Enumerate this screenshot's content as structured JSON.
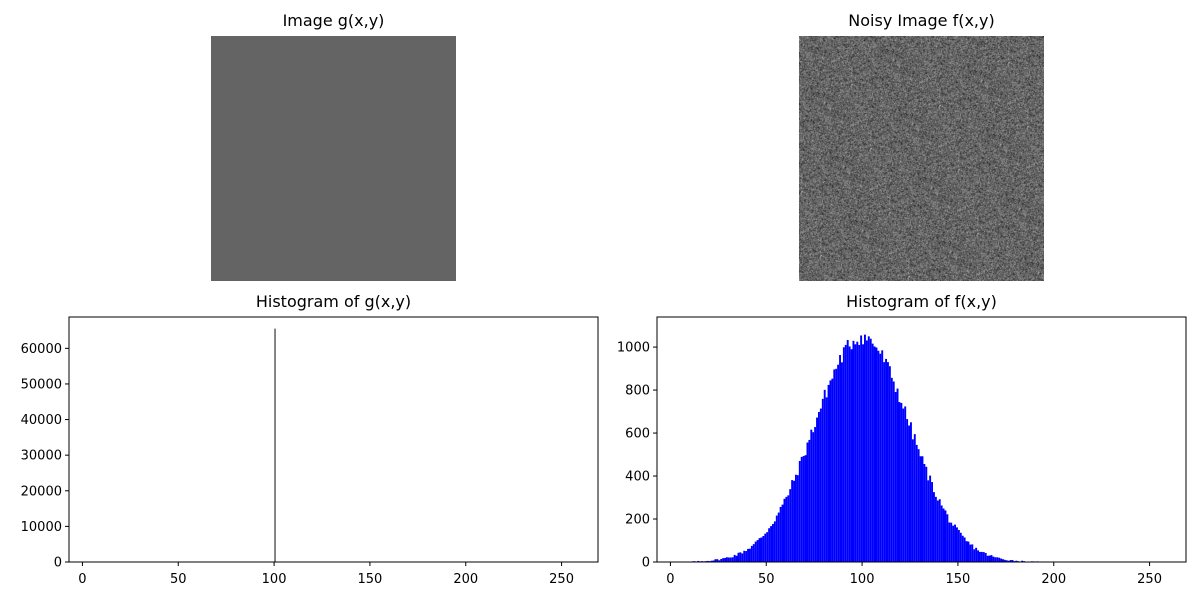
{
  "panels": {
    "image_g": {
      "title": "Image g(x,y)",
      "fill_gray_level": 100
    },
    "image_f": {
      "title": "Noisy Image f(x,y)",
      "noise_mean": 100,
      "noise_std": 25
    },
    "hist_g": {
      "title": "Histogram of g(x,y)"
    },
    "hist_f": {
      "title": "Histogram of f(x,y)"
    }
  },
  "chart_data": [
    {
      "type": "bar",
      "title": "Histogram of g(x,y)",
      "xlabel": "",
      "ylabel": "",
      "xlim": [
        -7,
        269
      ],
      "ylim": [
        0,
        68800
      ],
      "xticks": [
        0,
        50,
        100,
        150,
        200,
        250
      ],
      "yticks": [
        0,
        10000,
        20000,
        30000,
        40000,
        50000,
        60000
      ],
      "ytick_labels": [
        "0",
        "10000",
        "20000",
        "30000",
        "40000",
        "50000",
        "60000"
      ],
      "xtick_labels": [
        "0",
        "50",
        "100",
        "150",
        "200",
        "250"
      ],
      "color": "#808080",
      "bins": [
        100
      ],
      "values": [
        65536
      ]
    },
    {
      "type": "bar",
      "title": "Histogram of f(x,y)",
      "xlabel": "",
      "ylabel": "",
      "xlim": [
        -7,
        269
      ],
      "ylim": [
        0,
        1140
      ],
      "xticks": [
        0,
        50,
        100,
        150,
        200,
        250
      ],
      "yticks": [
        0,
        200,
        400,
        600,
        800,
        1000
      ],
      "ytick_labels": [
        "0",
        "200",
        "400",
        "600",
        "800",
        "1000"
      ],
      "xtick_labels": [
        "0",
        "50",
        "100",
        "150",
        "200",
        "250"
      ],
      "color": "#0000ff",
      "distribution": {
        "mean": 100,
        "std": 25,
        "total": 65536
      },
      "bin_range": [
        0,
        255
      ]
    }
  ]
}
